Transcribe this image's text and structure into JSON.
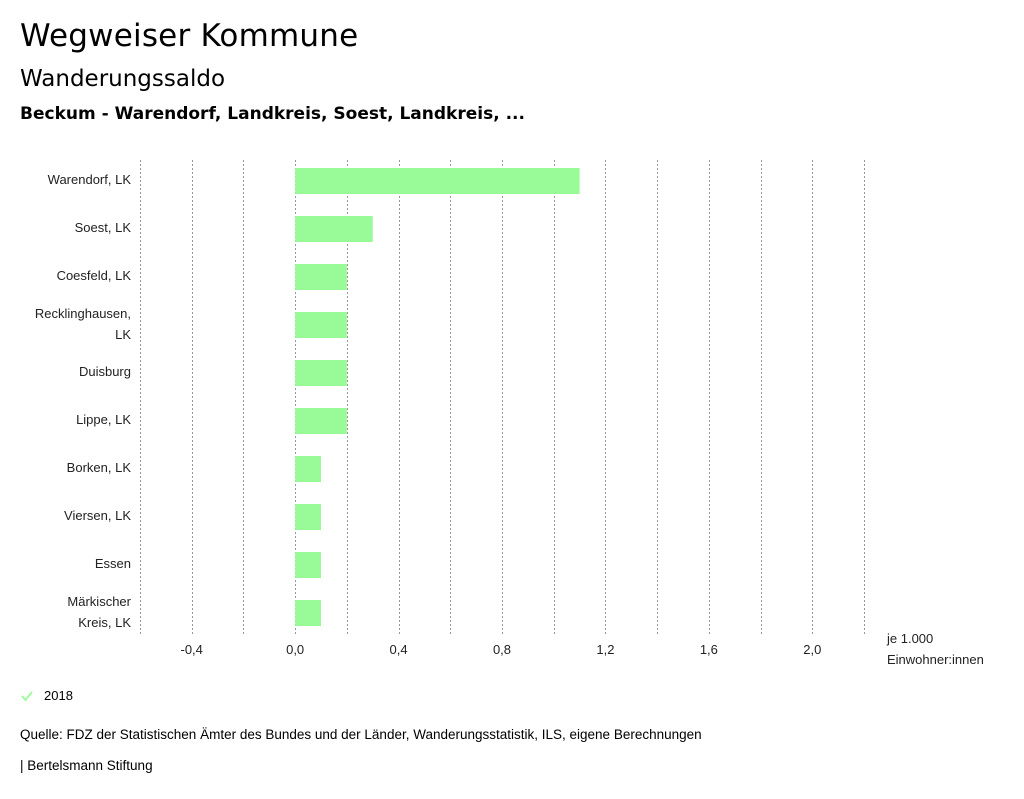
{
  "header": {
    "title": "Wegweiser Kommune",
    "subtitle": "Wanderungssaldo",
    "region": "Beckum - Warendorf, Landkreis, Soest, Landkreis, ..."
  },
  "chart_data": {
    "type": "bar",
    "orientation": "horizontal",
    "categories": [
      [
        "Warendorf, LK"
      ],
      [
        "Soest, LK"
      ],
      [
        "Coesfeld, LK"
      ],
      [
        "Recklinghausen,",
        "LK"
      ],
      [
        "Duisburg"
      ],
      [
        "Lippe, LK"
      ],
      [
        "Borken, LK"
      ],
      [
        "Viersen, LK"
      ],
      [
        "Essen"
      ],
      [
        "Märkischer",
        "Kreis, LK"
      ]
    ],
    "series": [
      {
        "name": "2018",
        "values": [
          1.1,
          0.3,
          0.2,
          0.2,
          0.2,
          0.2,
          0.1,
          0.1,
          0.1,
          0.1
        ]
      }
    ],
    "xlim": [
      -0.6,
      2.2
    ],
    "ticks": [
      -0.4,
      0.0,
      0.4,
      0.8,
      1.2,
      1.6,
      2.0
    ],
    "tick_labels": [
      "-0,4",
      "0,0",
      "0,4",
      "0,8",
      "1,2",
      "1,6",
      "2,0"
    ],
    "gridlines": [
      -0.6,
      -0.4,
      -0.2,
      0.0,
      0.2,
      0.4,
      0.6,
      0.8,
      1.0,
      1.2,
      1.4,
      1.6,
      1.8,
      2.0,
      2.2
    ],
    "xlabel": [
      "je 1.000",
      "Einwohner:innen"
    ],
    "grid": true,
    "bar_color": "#98fb98"
  },
  "legend": {
    "label": "2018",
    "color": "#98fb98",
    "icon": "check-icon"
  },
  "footer": {
    "source": "Quelle: FDZ der Statistischen Ämter des Bundes und der Länder, Wanderungsstatistik, ILS, eigene Berechnungen",
    "publisher": "| Bertelsmann Stiftung"
  }
}
